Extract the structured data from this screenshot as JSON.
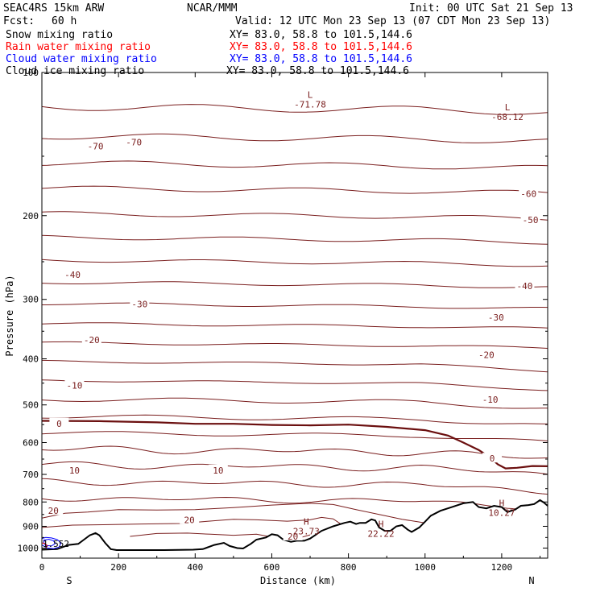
{
  "header": {
    "model": "SEAC4RS 15km ARW",
    "org": "NCAR/MMM",
    "init": "Init: 00 UTC Sat 21 Sep 13",
    "fcst_label": "Fcst:",
    "fcst_value": "60 h",
    "valid": "Valid: 12 UTC Mon 23 Sep 13 (07 CDT Mon 23 Sep 13)"
  },
  "fields": [
    {
      "name": "Snow mixing ratio",
      "xy": "XY=  83.0, 58.8 to 101.5,144.6",
      "color": "#000000"
    },
    {
      "name": "Rain water mixing ratio",
      "xy": "XY=  83.0, 58.8 to 101.5,144.6",
      "color": "#ff0000"
    },
    {
      "name": "Cloud water mixing ratio",
      "xy": "XY=  83.0, 58.8 to 101.5,144.6",
      "color": "#0000ff"
    },
    {
      "name": "Cloud ice mixing ratio",
      "xy": "XY=  83.0, 58.8 to 101.5,144.6",
      "color": "#000000"
    }
  ],
  "colors": {
    "contour": "#7a1e1e",
    "freezing": "#6b0f0f",
    "terrain": "#000000",
    "cloud_water": "#0000ff",
    "rain_water": "#ff0000"
  },
  "chart_data": {
    "type": "contour-cross-section",
    "xlabel": "Distance (km)",
    "ylabel": "Pressure (hPa)",
    "xlim": [
      0,
      1320
    ],
    "ylim": [
      1050,
      100
    ],
    "y_scale": "log",
    "x_ticks": [
      0,
      200,
      400,
      600,
      800,
      1000,
      1200
    ],
    "y_ticks": [
      200,
      300,
      400,
      500,
      600,
      700,
      800,
      900,
      1000
    ],
    "y_tick_partial": "100",
    "endpoints": {
      "left": "S",
      "right": "N"
    },
    "isotherm_labels": [
      {
        "text": "-70",
        "x": 240,
        "p": 140
      },
      {
        "text": "-70",
        "x": 140,
        "p": 143
      },
      {
        "text": "-60",
        "x": 1270,
        "p": 180
      },
      {
        "text": "-50",
        "x": 1275,
        "p": 204
      },
      {
        "text": "-40",
        "x": 80,
        "p": 266
      },
      {
        "text": "-40",
        "x": 1260,
        "p": 281
      },
      {
        "text": "-30",
        "x": 255,
        "p": 307
      },
      {
        "text": "-30",
        "x": 1185,
        "p": 327
      },
      {
        "text": "-20",
        "x": 130,
        "p": 365
      },
      {
        "text": "-20",
        "x": 1160,
        "p": 392
      },
      {
        "text": "-10",
        "x": 85,
        "p": 455
      },
      {
        "text": "-10",
        "x": 1170,
        "p": 487
      },
      {
        "text": "0",
        "x": 45,
        "p": 547
      },
      {
        "text": "0",
        "x": 1175,
        "p": 648
      },
      {
        "text": "10",
        "x": 85,
        "p": 686
      },
      {
        "text": "10",
        "x": 460,
        "p": 686
      },
      {
        "text": "20",
        "x": 30,
        "p": 835
      },
      {
        "text": "20",
        "x": 385,
        "p": 872
      },
      {
        "text": "20",
        "x": 655,
        "p": 945
      }
    ],
    "extrema": [
      {
        "mark": "L",
        "value": "-71.78",
        "x": 700,
        "p": 113
      },
      {
        "mark": "L",
        "value": "-68.12",
        "x": 1215,
        "p": 120
      },
      {
        "mark": "H",
        "value": "23.73",
        "x": 690,
        "p": 893
      },
      {
        "mark": "H",
        "value": "22.22",
        "x": 885,
        "p": 904
      },
      {
        "mark": "H",
        "value": "10.27",
        "x": 1200,
        "p": 816
      }
    ],
    "cloud_water_label": "1.552",
    "terrain_surface": [
      [
        0,
        1008
      ],
      [
        40,
        1005
      ],
      [
        70,
        985
      ],
      [
        95,
        980
      ],
      [
        110,
        960
      ],
      [
        125,
        940
      ],
      [
        140,
        930
      ],
      [
        150,
        940
      ],
      [
        165,
        975
      ],
      [
        180,
        1005
      ],
      [
        195,
        1010
      ],
      [
        250,
        1010
      ],
      [
        320,
        1010
      ],
      [
        395,
        1008
      ],
      [
        420,
        1005
      ],
      [
        450,
        985
      ],
      [
        475,
        975
      ],
      [
        490,
        990
      ],
      [
        510,
        1000
      ],
      [
        525,
        1002
      ],
      [
        545,
        980
      ],
      [
        560,
        960
      ],
      [
        585,
        950
      ],
      [
        600,
        935
      ],
      [
        615,
        940
      ],
      [
        630,
        960
      ],
      [
        650,
        970
      ],
      [
        665,
        965
      ],
      [
        685,
        965
      ],
      [
        700,
        955
      ],
      [
        730,
        920
      ],
      [
        760,
        900
      ],
      [
        790,
        885
      ],
      [
        805,
        880
      ],
      [
        820,
        890
      ],
      [
        830,
        885
      ],
      [
        845,
        885
      ],
      [
        860,
        870
      ],
      [
        870,
        875
      ],
      [
        880,
        905
      ],
      [
        895,
        920
      ],
      [
        910,
        920
      ],
      [
        925,
        900
      ],
      [
        940,
        895
      ],
      [
        955,
        915
      ],
      [
        965,
        925
      ],
      [
        985,
        905
      ],
      [
        1000,
        880
      ],
      [
        1015,
        855
      ],
      [
        1040,
        835
      ],
      [
        1070,
        820
      ],
      [
        1100,
        805
      ],
      [
        1125,
        800
      ],
      [
        1140,
        820
      ],
      [
        1160,
        825
      ],
      [
        1180,
        815
      ],
      [
        1200,
        820
      ],
      [
        1215,
        840
      ],
      [
        1235,
        830
      ],
      [
        1250,
        815
      ],
      [
        1270,
        812
      ],
      [
        1285,
        808
      ],
      [
        1300,
        793
      ],
      [
        1310,
        802
      ],
      [
        1320,
        815
      ]
    ]
  }
}
